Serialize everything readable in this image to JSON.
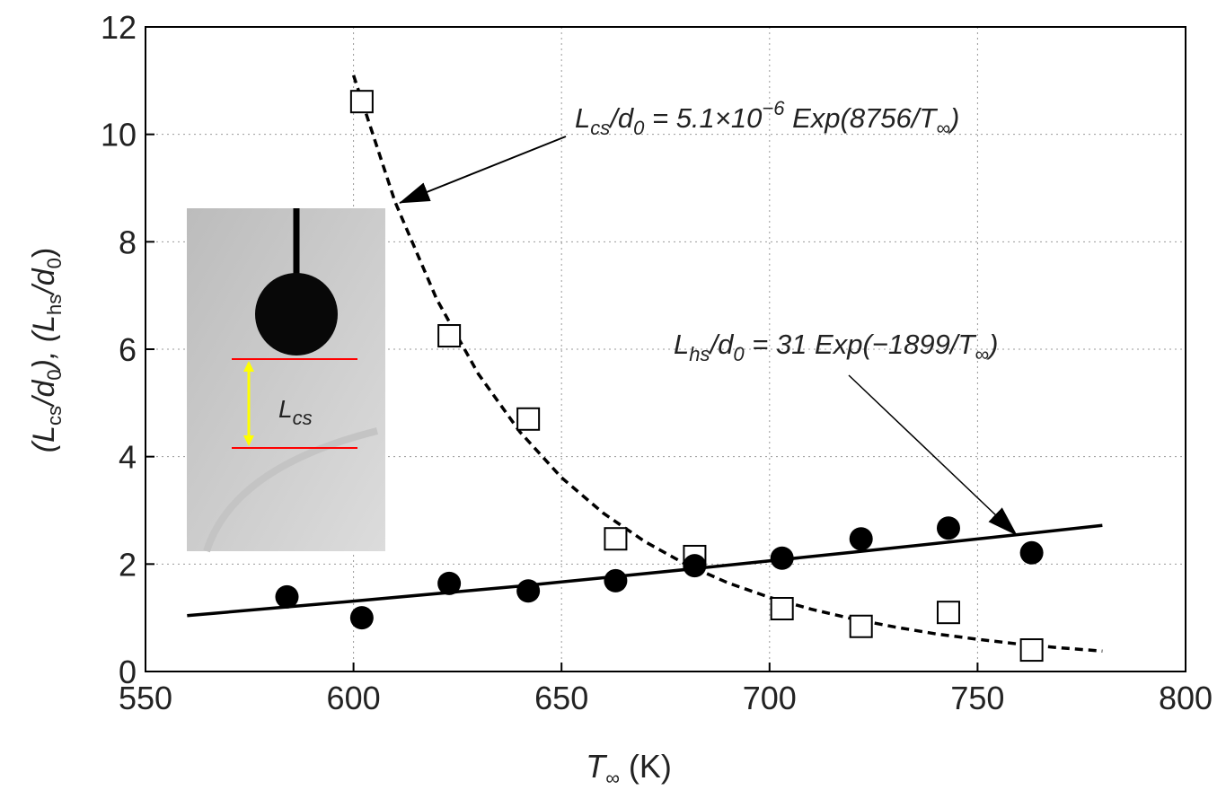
{
  "chart_data": {
    "type": "scatter",
    "xlabel": [
      "T",
      "∞",
      " (K)"
    ],
    "ylabel": [
      "(L",
      "cs",
      "/d",
      "0",
      "), (L",
      "hs",
      "/d",
      "0",
      ")"
    ],
    "xlim": [
      550,
      800
    ],
    "ylim": [
      0,
      12
    ],
    "xticks": [
      550,
      600,
      650,
      700,
      750,
      800
    ],
    "yticks": [
      0,
      2,
      4,
      6,
      8,
      10,
      12
    ],
    "grid": true,
    "series": [
      {
        "marker": "square",
        "color": "#000000",
        "x": [
          602,
          623,
          642,
          663,
          682,
          703,
          722,
          743,
          763
        ],
        "values": [
          10.61,
          6.25,
          4.7,
          2.47,
          2.14,
          1.17,
          0.84,
          1.1,
          0.4
        ]
      },
      {
        "marker": "circle",
        "color": "#000000",
        "x": [
          584,
          602,
          623,
          642,
          663,
          682,
          703,
          722,
          743,
          763
        ],
        "values": [
          1.39,
          1.0,
          1.64,
          1.5,
          1.69,
          1.97,
          2.11,
          2.47,
          2.67,
          2.21
        ]
      }
    ],
    "fits": [
      {
        "dash": true,
        "color": "#000000",
        "x": [
          600,
          610,
          620,
          630,
          640,
          650,
          660,
          670,
          680,
          690,
          700,
          710,
          720,
          730,
          740,
          750,
          760,
          770,
          780
        ],
        "values": [
          11.1,
          8.74,
          6.93,
          5.54,
          4.46,
          3.61,
          2.95,
          2.42,
          1.99,
          1.65,
          1.38,
          1.16,
          0.98,
          0.83,
          0.7,
          0.6,
          0.51,
          0.44,
          0.38
        ]
      },
      {
        "dash": false,
        "color": "#000000",
        "x": [
          560,
          600,
          640,
          680,
          720,
          760,
          780
        ],
        "values": [
          1.04,
          1.31,
          1.59,
          1.9,
          2.22,
          2.55,
          2.72
        ]
      }
    ],
    "annotations": [
      [
        "L",
        "cs",
        "/d",
        "0",
        " = 5.1×10",
        "−6",
        " Exp(8756/T",
        "∞",
        ")"
      ],
      [
        "L",
        "hs",
        "/d",
        "0",
        " = 31 Exp(−1899/T",
        "∞",
        ")"
      ]
    ],
    "inset_label": [
      "L",
      "cs"
    ]
  }
}
